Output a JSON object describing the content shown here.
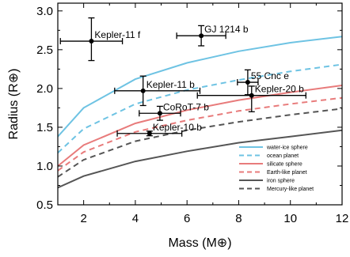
{
  "chart_data": {
    "type": "scatter",
    "xlabel": "Mass (M⊕)",
    "ylabel": "Radius (R⊕)",
    "xlim": [
      1,
      12
    ],
    "ylim": [
      0.5,
      3.1
    ],
    "xticks": [
      2,
      4,
      6,
      8,
      10,
      12
    ],
    "yticks": [
      0.5,
      1.0,
      1.5,
      2.0,
      2.5,
      3.0
    ],
    "grid": false,
    "legend": "bottom-right",
    "planets": [
      {
        "name": "Kepler-11 f",
        "mass": 2.3,
        "radius": 2.61,
        "mass_err": [
          1.2,
          1.2
        ],
        "radius_err": [
          0.25,
          0.3
        ]
      },
      {
        "name": "GJ 1214 b",
        "mass": 6.55,
        "radius": 2.68,
        "mass_err": [
          0.95,
          0.95
        ],
        "radius_err": [
          0.13,
          0.13
        ]
      },
      {
        "name": "55 Cnc e",
        "mass": 8.35,
        "radius": 2.08,
        "mass_err": [
          0.4,
          0.4
        ],
        "radius_err": [
          0.16,
          0.16
        ]
      },
      {
        "name": "Kepler-11 b",
        "mass": 4.3,
        "radius": 1.97,
        "mass_err": [
          1.1,
          2.2
        ],
        "radius_err": [
          0.19,
          0.19
        ]
      },
      {
        "name": "Kepler-20 b",
        "mass": 8.5,
        "radius": 1.91,
        "mass_err": [
          2.1,
          2.1
        ],
        "radius_err": [
          0.21,
          0.12
        ]
      },
      {
        "name": "CoRoT-7 b",
        "mass": 4.95,
        "radius": 1.68,
        "mass_err": [
          0.8,
          0.8
        ],
        "radius_err": [
          0.09,
          0.09
        ]
      },
      {
        "name": "Kepler-10 b",
        "mass": 4.55,
        "radius": 1.42,
        "mass_err": [
          1.25,
          1.25
        ],
        "radius_err": [
          0.03,
          0.03
        ]
      }
    ],
    "series": [
      {
        "name": "water-ice sphere",
        "color": "#6ec3e3",
        "dashed": false,
        "x": [
          1,
          2,
          4,
          6,
          8,
          10,
          12
        ],
        "y": [
          1.38,
          1.75,
          2.12,
          2.33,
          2.48,
          2.59,
          2.67
        ]
      },
      {
        "name": "ocean planet",
        "color": "#6ec3e3",
        "dashed": true,
        "x": [
          1,
          2,
          4,
          6,
          8,
          10,
          12
        ],
        "y": [
          1.17,
          1.48,
          1.8,
          1.98,
          2.11,
          2.22,
          2.31
        ]
      },
      {
        "name": "silicate sphere",
        "color": "#e87b7b",
        "dashed": false,
        "x": [
          1,
          2,
          4,
          6,
          8,
          10,
          12
        ],
        "y": [
          1.0,
          1.27,
          1.55,
          1.72,
          1.85,
          1.95,
          2.04
        ]
      },
      {
        "name": "Earth-like planet",
        "color": "#e87b7b",
        "dashed": true,
        "x": [
          1,
          2,
          4,
          6,
          8,
          10,
          12
        ],
        "y": [
          0.94,
          1.18,
          1.44,
          1.59,
          1.71,
          1.8,
          1.88
        ]
      },
      {
        "name": "iron sphere",
        "color": "#555555",
        "dashed": false,
        "x": [
          1,
          2,
          4,
          6,
          8,
          10,
          12
        ],
        "y": [
          0.72,
          0.87,
          1.06,
          1.19,
          1.3,
          1.38,
          1.46
        ]
      },
      {
        "name": "Mercury-like planet",
        "color": "#555555",
        "dashed": true,
        "x": [
          1,
          2,
          4,
          6,
          8,
          10,
          12
        ],
        "y": [
          0.86,
          1.08,
          1.32,
          1.46,
          1.57,
          1.66,
          1.74
        ]
      }
    ]
  }
}
